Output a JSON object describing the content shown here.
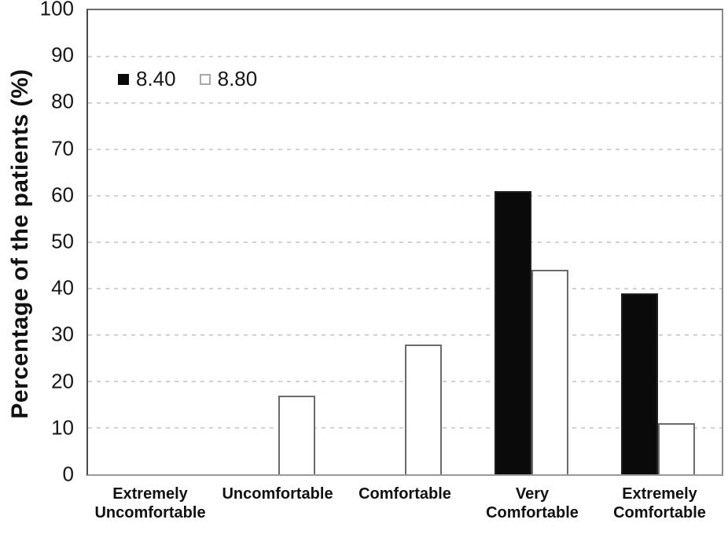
{
  "chart_data": {
    "type": "bar",
    "title": "",
    "xlabel": "",
    "ylabel": "Percentage of the patients (%)",
    "categories": [
      "Extremely Uncomfortable",
      "Uncomfortable",
      "Comfortable",
      "Very Comfortable",
      "Extremely Comfortable"
    ],
    "series": [
      {
        "name": "8.40",
        "fill": "#0a0a0a",
        "border": "#1f1f1f",
        "values": [
          0,
          0,
          0,
          61,
          39
        ]
      },
      {
        "name": "8.80",
        "fill": "#ffffff",
        "border": "#6b6b6b",
        "values": [
          0,
          17,
          28,
          44,
          11
        ]
      }
    ],
    "ylim": [
      0,
      100
    ],
    "yticks": [
      0,
      10,
      20,
      30,
      40,
      50,
      60,
      70,
      80,
      90,
      100
    ],
    "grid": "horizontal-dashed",
    "gridline_color": "#d2d2d2",
    "legend_position": "top-left-inside",
    "legend_swatch_border_light": "#a8a8a8"
  }
}
